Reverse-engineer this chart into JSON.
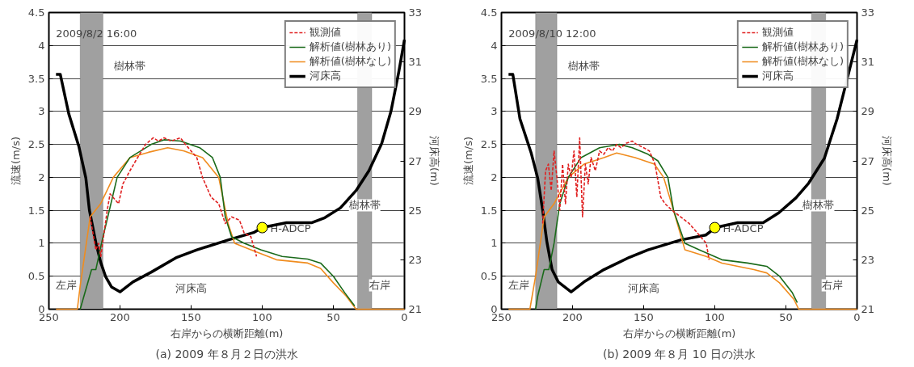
{
  "chart_data": [
    {
      "type": "line",
      "title": "(a) 2009 年８月２日の洪水",
      "xlabel": "右岸からの横断距離(m)",
      "ylabel": "流速(m/s)",
      "y2label": "河床高(m)",
      "xlim": [
        250,
        0
      ],
      "xticks": [
        250,
        200,
        150,
        100,
        50,
        0
      ],
      "ylim": [
        0,
        4.5
      ],
      "yticks": [
        0,
        0.5,
        1,
        1.5,
        2,
        2.5,
        3,
        3.5,
        4,
        4.5
      ],
      "y2lim": [
        21,
        33
      ],
      "y2ticks": [
        21,
        23,
        25,
        27,
        29,
        31,
        33
      ],
      "grid": "y",
      "legend": "top right",
      "annotations": [
        "2009/8/2 16:00",
        "左岸",
        "右岸",
        "河床高"
      ],
      "bands": [
        {
          "axis": "x",
          "from": 228,
          "to": 212,
          "label": "樹林帯",
          "color": "#a0a0a0"
        },
        {
          "axis": "x",
          "from": 33,
          "to": 23,
          "label": "樹林帯",
          "color": "#a0a0a0"
        }
      ],
      "series": [
        {
          "name": "観測値",
          "color": "#e02020",
          "line_style": "dashed",
          "x": [
            221,
            217,
            215,
            213.5,
            209,
            207,
            201,
            198,
            193,
            189,
            182,
            176.6,
            173,
            169,
            164,
            157.5,
            154,
            146,
            142,
            136,
            130.6,
            126,
            121.6,
            116,
            112.6,
            108,
            104
          ],
          "values": [
            1.4,
            0.9,
            1.0,
            0.8,
            1.5,
            1.75,
            1.6,
            1.9,
            2.1,
            2.25,
            2.5,
            2.6,
            2.55,
            2.6,
            2.55,
            2.6,
            2.5,
            2.3,
            2.0,
            1.7,
            1.6,
            1.3,
            1.4,
            1.35,
            1.15,
            1.1,
            0.8
          ]
        },
        {
          "name": "解析値(樹林あり)",
          "color": "#1a6a1a",
          "line_style": "solid",
          "x": [
            228,
            220,
            217,
            213,
            202,
            193,
            178,
            169,
            157.5,
            144,
            135,
            129.5,
            126,
            121.6,
            112.6,
            101,
            86,
            68,
            59,
            50,
            42,
            35
          ],
          "values": [
            0,
            0.6,
            0.6,
            1.0,
            2.0,
            2.3,
            2.5,
            2.57,
            2.55,
            2.45,
            2.3,
            2.0,
            1.4,
            1.1,
            1.0,
            0.9,
            0.8,
            0.76,
            0.7,
            0.5,
            0.25,
            0.05
          ]
        },
        {
          "name": "解析値(樹林なし)",
          "color": "#f08c1e",
          "line_style": "solid",
          "x": [
            245,
            230,
            228,
            221,
            213.6,
            204.7,
            193,
            180,
            166.5,
            155,
            142,
            130.6,
            124,
            119.4,
            108,
            90,
            68,
            59,
            50,
            41,
            34,
            0
          ],
          "values": [
            0,
            0,
            0.35,
            1.4,
            1.6,
            2.0,
            2.3,
            2.38,
            2.45,
            2.4,
            2.3,
            2.0,
            1.3,
            1.0,
            0.9,
            0.75,
            0.7,
            0.62,
            0.4,
            0.2,
            0,
            0
          ]
        },
        {
          "name": "河床高",
          "color": "#000000",
          "line_style": "solid",
          "axis": "y2",
          "x": [
            245,
            242,
            236,
            229,
            224,
            221.5,
            217,
            213.6,
            210,
            206,
            200,
            191,
            178,
            160,
            146,
            124,
            106,
            100,
            83,
            65,
            56,
            45,
            34,
            25,
            16,
            9.5,
            4,
            0
          ],
          "values": [
            30.5,
            30.5,
            28.9,
            27.6,
            26.3,
            25.0,
            23.7,
            22.9,
            22.3,
            21.9,
            21.7,
            22.1,
            22.5,
            23.1,
            23.4,
            23.8,
            24.1,
            24.3,
            24.5,
            24.5,
            24.7,
            25.1,
            25.8,
            26.6,
            27.7,
            29.0,
            30.6,
            31.9
          ]
        },
        {
          "name": "H-ADCP",
          "type": "scatter",
          "marker": "circle",
          "color": "#ffff00",
          "axis": "y2",
          "x": [
            100
          ],
          "values": [
            24.3
          ]
        }
      ]
    },
    {
      "type": "line",
      "title": "(b) 2009 年８月 10 日の洪水",
      "xlabel": "右岸からの横断距離(m)",
      "ylabel": "流速(m/s)",
      "y2label": "河床高(m)",
      "xlim": [
        250,
        0
      ],
      "xticks": [
        250,
        200,
        150,
        100,
        50,
        0
      ],
      "ylim": [
        0,
        4.5
      ],
      "yticks": [
        0,
        0.5,
        1,
        1.5,
        2,
        2.5,
        3,
        3.5,
        4,
        4.5
      ],
      "y2lim": [
        21,
        33
      ],
      "y2ticks": [
        21,
        23,
        25,
        27,
        29,
        31,
        33
      ],
      "grid": "y",
      "legend": "top right",
      "annotations": [
        "2009/8/10 12:00",
        "左岸",
        "右岸",
        "河床高"
      ],
      "bands": [
        {
          "axis": "x",
          "from": 226,
          "to": 211,
          "label": "樹林帯",
          "color": "#a0a0a0"
        },
        {
          "axis": "x",
          "from": 32,
          "to": 22,
          "label": "樹林帯",
          "color": "#a0a0a0"
        }
      ],
      "series": [
        {
          "name": "観測値",
          "color": "#e02020",
          "line_style": "dashed",
          "x": [
            221,
            219,
            217,
            215,
            213,
            211,
            209,
            207,
            205,
            203,
            201,
            199,
            197,
            195,
            193,
            191,
            189,
            187,
            184,
            181,
            178,
            175,
            172,
            169,
            166,
            162,
            158,
            155,
            150,
            146,
            142,
            138,
            135,
            130,
            127,
            124,
            118,
            114,
            110,
            106,
            104
          ],
          "values": [
            1.3,
            2.1,
            2.2,
            1.8,
            2.4,
            2.0,
            1.5,
            2.2,
            1.6,
            2.2,
            2.0,
            2.4,
            1.7,
            2.6,
            1.4,
            2.2,
            1.9,
            2.3,
            2.1,
            2.4,
            2.35,
            2.45,
            2.4,
            2.5,
            2.45,
            2.52,
            2.55,
            2.5,
            2.45,
            2.4,
            2.2,
            1.7,
            1.6,
            1.5,
            1.45,
            1.4,
            1.3,
            1.2,
            1.1,
            1.0,
            0.75
          ]
        },
        {
          "name": "解析値(樹林あり)",
          "color": "#1a6a1a",
          "line_style": "solid",
          "x": [
            226,
            224.5,
            220,
            216.7,
            213,
            209,
            203,
            194,
            181,
            167,
            158,
            147,
            140,
            133,
            129,
            121,
            111,
            95,
            77,
            63.5,
            54.5,
            45.5,
            42
          ],
          "values": [
            0,
            0.2,
            0.6,
            0.6,
            1.0,
            1.6,
            2.0,
            2.3,
            2.45,
            2.5,
            2.45,
            2.35,
            2.25,
            2.0,
            1.5,
            1.0,
            0.9,
            0.75,
            0.7,
            0.65,
            0.5,
            0.25,
            0.1
          ]
        },
        {
          "name": "解析値(樹林なし)",
          "color": "#f08c1e",
          "line_style": "solid",
          "x": [
            245,
            230,
            226,
            220,
            213,
            203,
            192,
            178,
            169,
            156,
            142.5,
            136,
            129,
            121,
            106,
            95,
            72.5,
            63.5,
            54.5,
            44.4,
            41,
            0
          ],
          "values": [
            0,
            0,
            0.5,
            1.4,
            1.6,
            2.0,
            2.2,
            2.3,
            2.37,
            2.3,
            2.2,
            2.0,
            1.5,
            0.9,
            0.8,
            0.7,
            0.6,
            0.55,
            0.4,
            0.15,
            0,
            0
          ]
        },
        {
          "name": "河床高",
          "color": "#000000",
          "line_style": "solid",
          "axis": "y2",
          "x": [
            245,
            242,
            237,
            229,
            224.5,
            221,
            218,
            214.4,
            210,
            201,
            192,
            178,
            160,
            147,
            124,
            106.3,
            99.5,
            84,
            66,
            55,
            43,
            34,
            23,
            14,
            7,
            0
          ],
          "values": [
            30.5,
            30.5,
            28.7,
            27.3,
            26.3,
            25.0,
            23.7,
            22.6,
            22.1,
            21.7,
            22.1,
            22.6,
            23.1,
            23.4,
            23.8,
            24.0,
            24.3,
            24.5,
            24.5,
            24.9,
            25.5,
            26.1,
            27.1,
            28.7,
            30.3,
            31.9
          ]
        },
        {
          "name": "H-ADCP",
          "type": "scatter",
          "marker": "circle",
          "color": "#ffff00",
          "axis": "y2",
          "x": [
            100
          ],
          "values": [
            24.3
          ]
        }
      ]
    }
  ]
}
